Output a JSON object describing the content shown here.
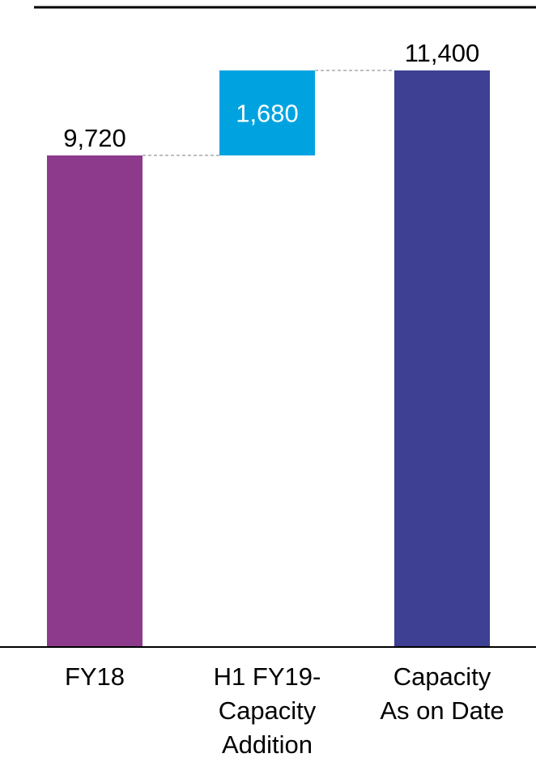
{
  "chart_data": {
    "type": "bar",
    "subtype": "waterfall",
    "categories": [
      [
        "FY18"
      ],
      [
        "H1 FY19-",
        "Capacity",
        "Addition"
      ],
      [
        "Capacity",
        "As on Date"
      ]
    ],
    "values": [
      9720,
      1680,
      11400
    ],
    "value_labels": [
      "9,720",
      "1,680",
      "11,400"
    ],
    "bar_kinds": [
      "total",
      "increment",
      "total"
    ],
    "colors": [
      "#8e3a8c",
      "#00a3e0",
      "#3e4094"
    ],
    "increment_label_color": "#ffffff",
    "connector_style": "dashed",
    "grid": false,
    "legend": "none",
    "title": "",
    "xlabel": "",
    "ylabel": "",
    "ylim": [
      0,
      11400
    ]
  }
}
